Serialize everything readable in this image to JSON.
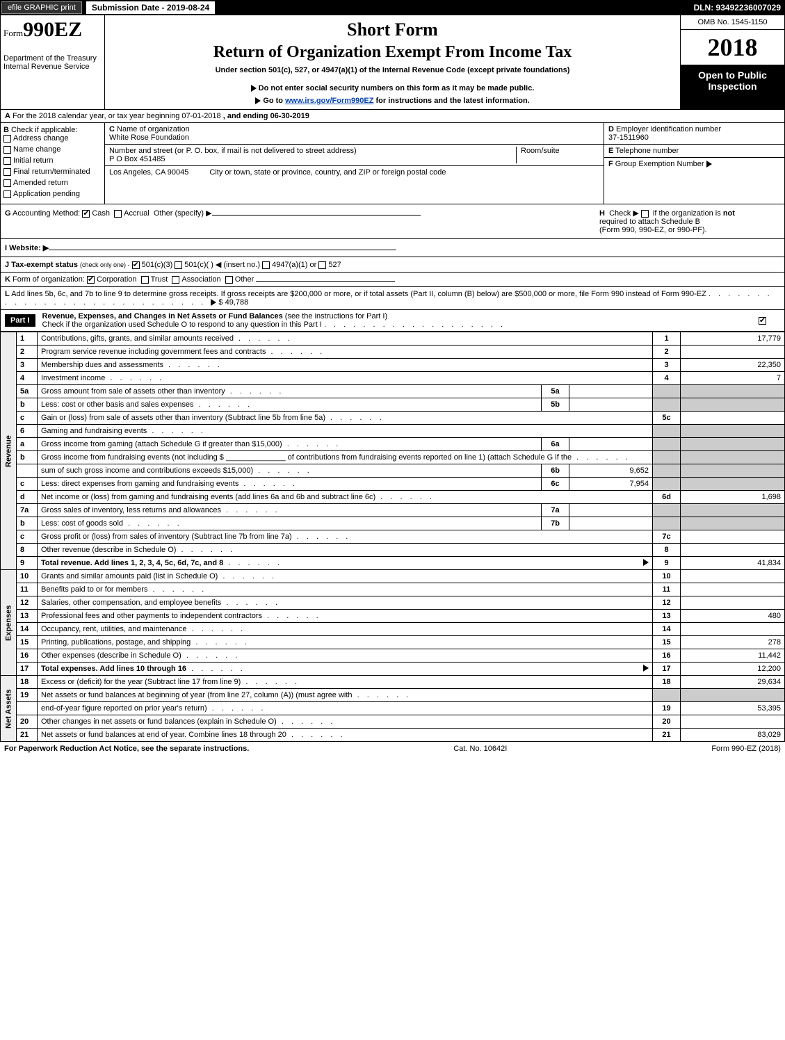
{
  "top": {
    "efile": "efile GRAPHIC print",
    "submission": "Submission Date - 2019-08-24",
    "dln": "DLN: 93492236007029"
  },
  "header": {
    "form_prefix": "Form",
    "form_num": "990EZ",
    "dept": "Department of the Treasury",
    "irs": "Internal Revenue Service",
    "short_form": "Short Form",
    "title": "Return of Organization Exempt From Income Tax",
    "under_section": "Under section 501(c), 527, or 4947(a)(1) of the Internal Revenue Code (except private foundations)",
    "notice1_arrow": "▶",
    "notice1": "Do not enter social security numbers on this form as it may be made public.",
    "notice2_arrow": "▶",
    "notice2_pre": "Go to ",
    "notice2_link": "www.irs.gov/Form990EZ",
    "notice2_post": " for instructions and the latest information.",
    "omb": "OMB No. 1545-1150",
    "year": "2018",
    "open_public1": "Open to Public",
    "open_public2": "Inspection"
  },
  "row_a": {
    "label_a": "A",
    "text": "For the 2018 calendar year, or tax year beginning 07-01-2018",
    "ending": ", and ending 06-30-2019"
  },
  "col_b": {
    "label": "B",
    "check_if": "Check if applicable:",
    "items": [
      "Address change",
      "Name change",
      "Initial return",
      "Final return/terminated",
      "Amended return",
      "Application pending"
    ]
  },
  "col_c": {
    "c_label": "C",
    "c_name_label": "Name of organization",
    "c_name": "White Rose Foundation",
    "addr_label": "Number and street (or P. O. box, if mail is not delivered to street address)",
    "addr": "P O Box 451485",
    "room_label": "Room/suite",
    "city_label": "City or town, state or province, country, and ZIP or foreign postal code",
    "city": "Los Angeles, CA  90045"
  },
  "col_d": {
    "d_label": "D",
    "d_text": "Employer identification number",
    "ein": "37-1511960",
    "e_label": "E",
    "e_text": "Telephone number",
    "f_label": "F",
    "f_text": "Group Exemption Number",
    "f_arrow": "▶"
  },
  "row_g": {
    "g_label": "G",
    "g_text": "Accounting Method:",
    "cash": "Cash",
    "accrual": "Accrual",
    "other": "Other (specify) ▶",
    "h_label": "H",
    "h_text1": "Check ▶",
    "h_text2": "if the organization is",
    "h_not": "not",
    "h_text3": "required to attach Schedule B",
    "h_text4": "(Form 990, 990-EZ, or 990-PF)."
  },
  "row_i": {
    "label": "I Website: ▶"
  },
  "row_j": {
    "label": "J Tax-exempt status",
    "sub": "(check only one) -",
    "opt1": "501(c)(3)",
    "opt2": "501(c)(  )",
    "insert": "◀ (insert no.)",
    "opt3": "4947(a)(1) or",
    "opt4": "527"
  },
  "row_k": {
    "label": "K",
    "text": "Form of organization:",
    "corp": "Corporation",
    "trust": "Trust",
    "assoc": "Association",
    "other": "Other"
  },
  "row_l": {
    "label": "L",
    "text": "Add lines 5b, 6c, and 7b to line 9 to determine gross receipts. If gross receipts are $200,000 or more, or if total assets (Part II, column (B) below) are $500,000 or more, file Form 990 instead of Form 990-EZ",
    "arrow": "▶",
    "amount": "$ 49,788"
  },
  "part1": {
    "label": "Part I",
    "title": "Revenue, Expenses, and Changes in Net Assets or Fund Balances",
    "sub": "(see the instructions for Part I)",
    "check_text": "Check if the organization used Schedule O to respond to any question in this Part I"
  },
  "sections": {
    "revenue": "Revenue",
    "expenses": "Expenses",
    "netassets": "Net Assets"
  },
  "lines": [
    {
      "n": "1",
      "desc": "Contributions, gifts, grants, and similar amounts received",
      "rn": "1",
      "rv": "17,779"
    },
    {
      "n": "2",
      "desc": "Program service revenue including government fees and contracts",
      "rn": "2",
      "rv": ""
    },
    {
      "n": "3",
      "desc": "Membership dues and assessments",
      "rn": "3",
      "rv": "22,350"
    },
    {
      "n": "4",
      "desc": "Investment income",
      "rn": "4",
      "rv": "7"
    },
    {
      "n": "5a",
      "desc": "Gross amount from sale of assets other than inventory",
      "mn": "5a",
      "mv": "",
      "shaded": true
    },
    {
      "n": "b",
      "desc": "Less: cost or other basis and sales expenses",
      "mn": "5b",
      "mv": "",
      "shaded": true
    },
    {
      "n": "c",
      "desc": "Gain or (loss) from sale of assets other than inventory (Subtract line 5b from line 5a)",
      "rn": "5c",
      "rv": ""
    },
    {
      "n": "6",
      "desc": "Gaming and fundraising events",
      "shaded": true,
      "nomid": true
    },
    {
      "n": "a",
      "desc": "Gross income from gaming (attach Schedule G if greater than $15,000)",
      "mn": "6a",
      "mv": "",
      "shaded": true
    },
    {
      "n": "b",
      "desc": "Gross income from fundraising events (not including $ ______________ of contributions from fundraising events reported on line 1) (attach Schedule G if the",
      "nomid": true,
      "shaded": true
    },
    {
      "n": "",
      "desc": "sum of such gross income and contributions exceeds $15,000)",
      "mn": "6b",
      "mv": "9,652",
      "shaded": true
    },
    {
      "n": "c",
      "desc": "Less: direct expenses from gaming and fundraising events",
      "mn": "6c",
      "mv": "7,954",
      "shaded": true
    },
    {
      "n": "d",
      "desc": "Net income or (loss) from gaming and fundraising events (add lines 6a and 6b and subtract line 6c)",
      "rn": "6d",
      "rv": "1,698"
    },
    {
      "n": "7a",
      "desc": "Gross sales of inventory, less returns and allowances",
      "mn": "7a",
      "mv": "",
      "shaded": true
    },
    {
      "n": "b",
      "desc": "Less: cost of goods sold",
      "mn": "7b",
      "mv": "",
      "shaded": true
    },
    {
      "n": "c",
      "desc": "Gross profit or (loss) from sales of inventory (Subtract line 7b from line 7a)",
      "rn": "7c",
      "rv": ""
    },
    {
      "n": "8",
      "desc": "Other revenue (describe in Schedule O)",
      "rn": "8",
      "rv": ""
    },
    {
      "n": "9",
      "desc": "Total revenue. Add lines 1, 2, 3, 4, 5c, 6d, 7c, and 8",
      "rn": "9",
      "rv": "41,834",
      "bold": true,
      "arrow": true
    }
  ],
  "exp_lines": [
    {
      "n": "10",
      "desc": "Grants and similar amounts paid (list in Schedule O)",
      "rn": "10",
      "rv": ""
    },
    {
      "n": "11",
      "desc": "Benefits paid to or for members",
      "rn": "11",
      "rv": ""
    },
    {
      "n": "12",
      "desc": "Salaries, other compensation, and employee benefits",
      "rn": "12",
      "rv": ""
    },
    {
      "n": "13",
      "desc": "Professional fees and other payments to independent contractors",
      "rn": "13",
      "rv": "480"
    },
    {
      "n": "14",
      "desc": "Occupancy, rent, utilities, and maintenance",
      "rn": "14",
      "rv": ""
    },
    {
      "n": "15",
      "desc": "Printing, publications, postage, and shipping",
      "rn": "15",
      "rv": "278"
    },
    {
      "n": "16",
      "desc": "Other expenses (describe in Schedule O)",
      "rn": "16",
      "rv": "11,442"
    },
    {
      "n": "17",
      "desc": "Total expenses. Add lines 10 through 16",
      "rn": "17",
      "rv": "12,200",
      "bold": true,
      "arrow": true
    }
  ],
  "na_lines": [
    {
      "n": "18",
      "desc": "Excess or (deficit) for the year (Subtract line 17 from line 9)",
      "rn": "18",
      "rv": "29,634"
    },
    {
      "n": "19",
      "desc": "Net assets or fund balances at beginning of year (from line 27, column (A)) (must agree with",
      "nomid": true,
      "shaded": true
    },
    {
      "n": "",
      "desc": "end-of-year figure reported on prior year's return)",
      "rn": "19",
      "rv": "53,395"
    },
    {
      "n": "20",
      "desc": "Other changes in net assets or fund balances (explain in Schedule O)",
      "rn": "20",
      "rv": ""
    },
    {
      "n": "21",
      "desc": "Net assets or fund balances at end of year. Combine lines 18 through 20",
      "rn": "21",
      "rv": "83,029"
    }
  ],
  "footer": {
    "left": "For Paperwork Reduction Act Notice, see the separate instructions.",
    "mid": "Cat. No. 10642I",
    "right": "Form 990-EZ (2018)"
  }
}
